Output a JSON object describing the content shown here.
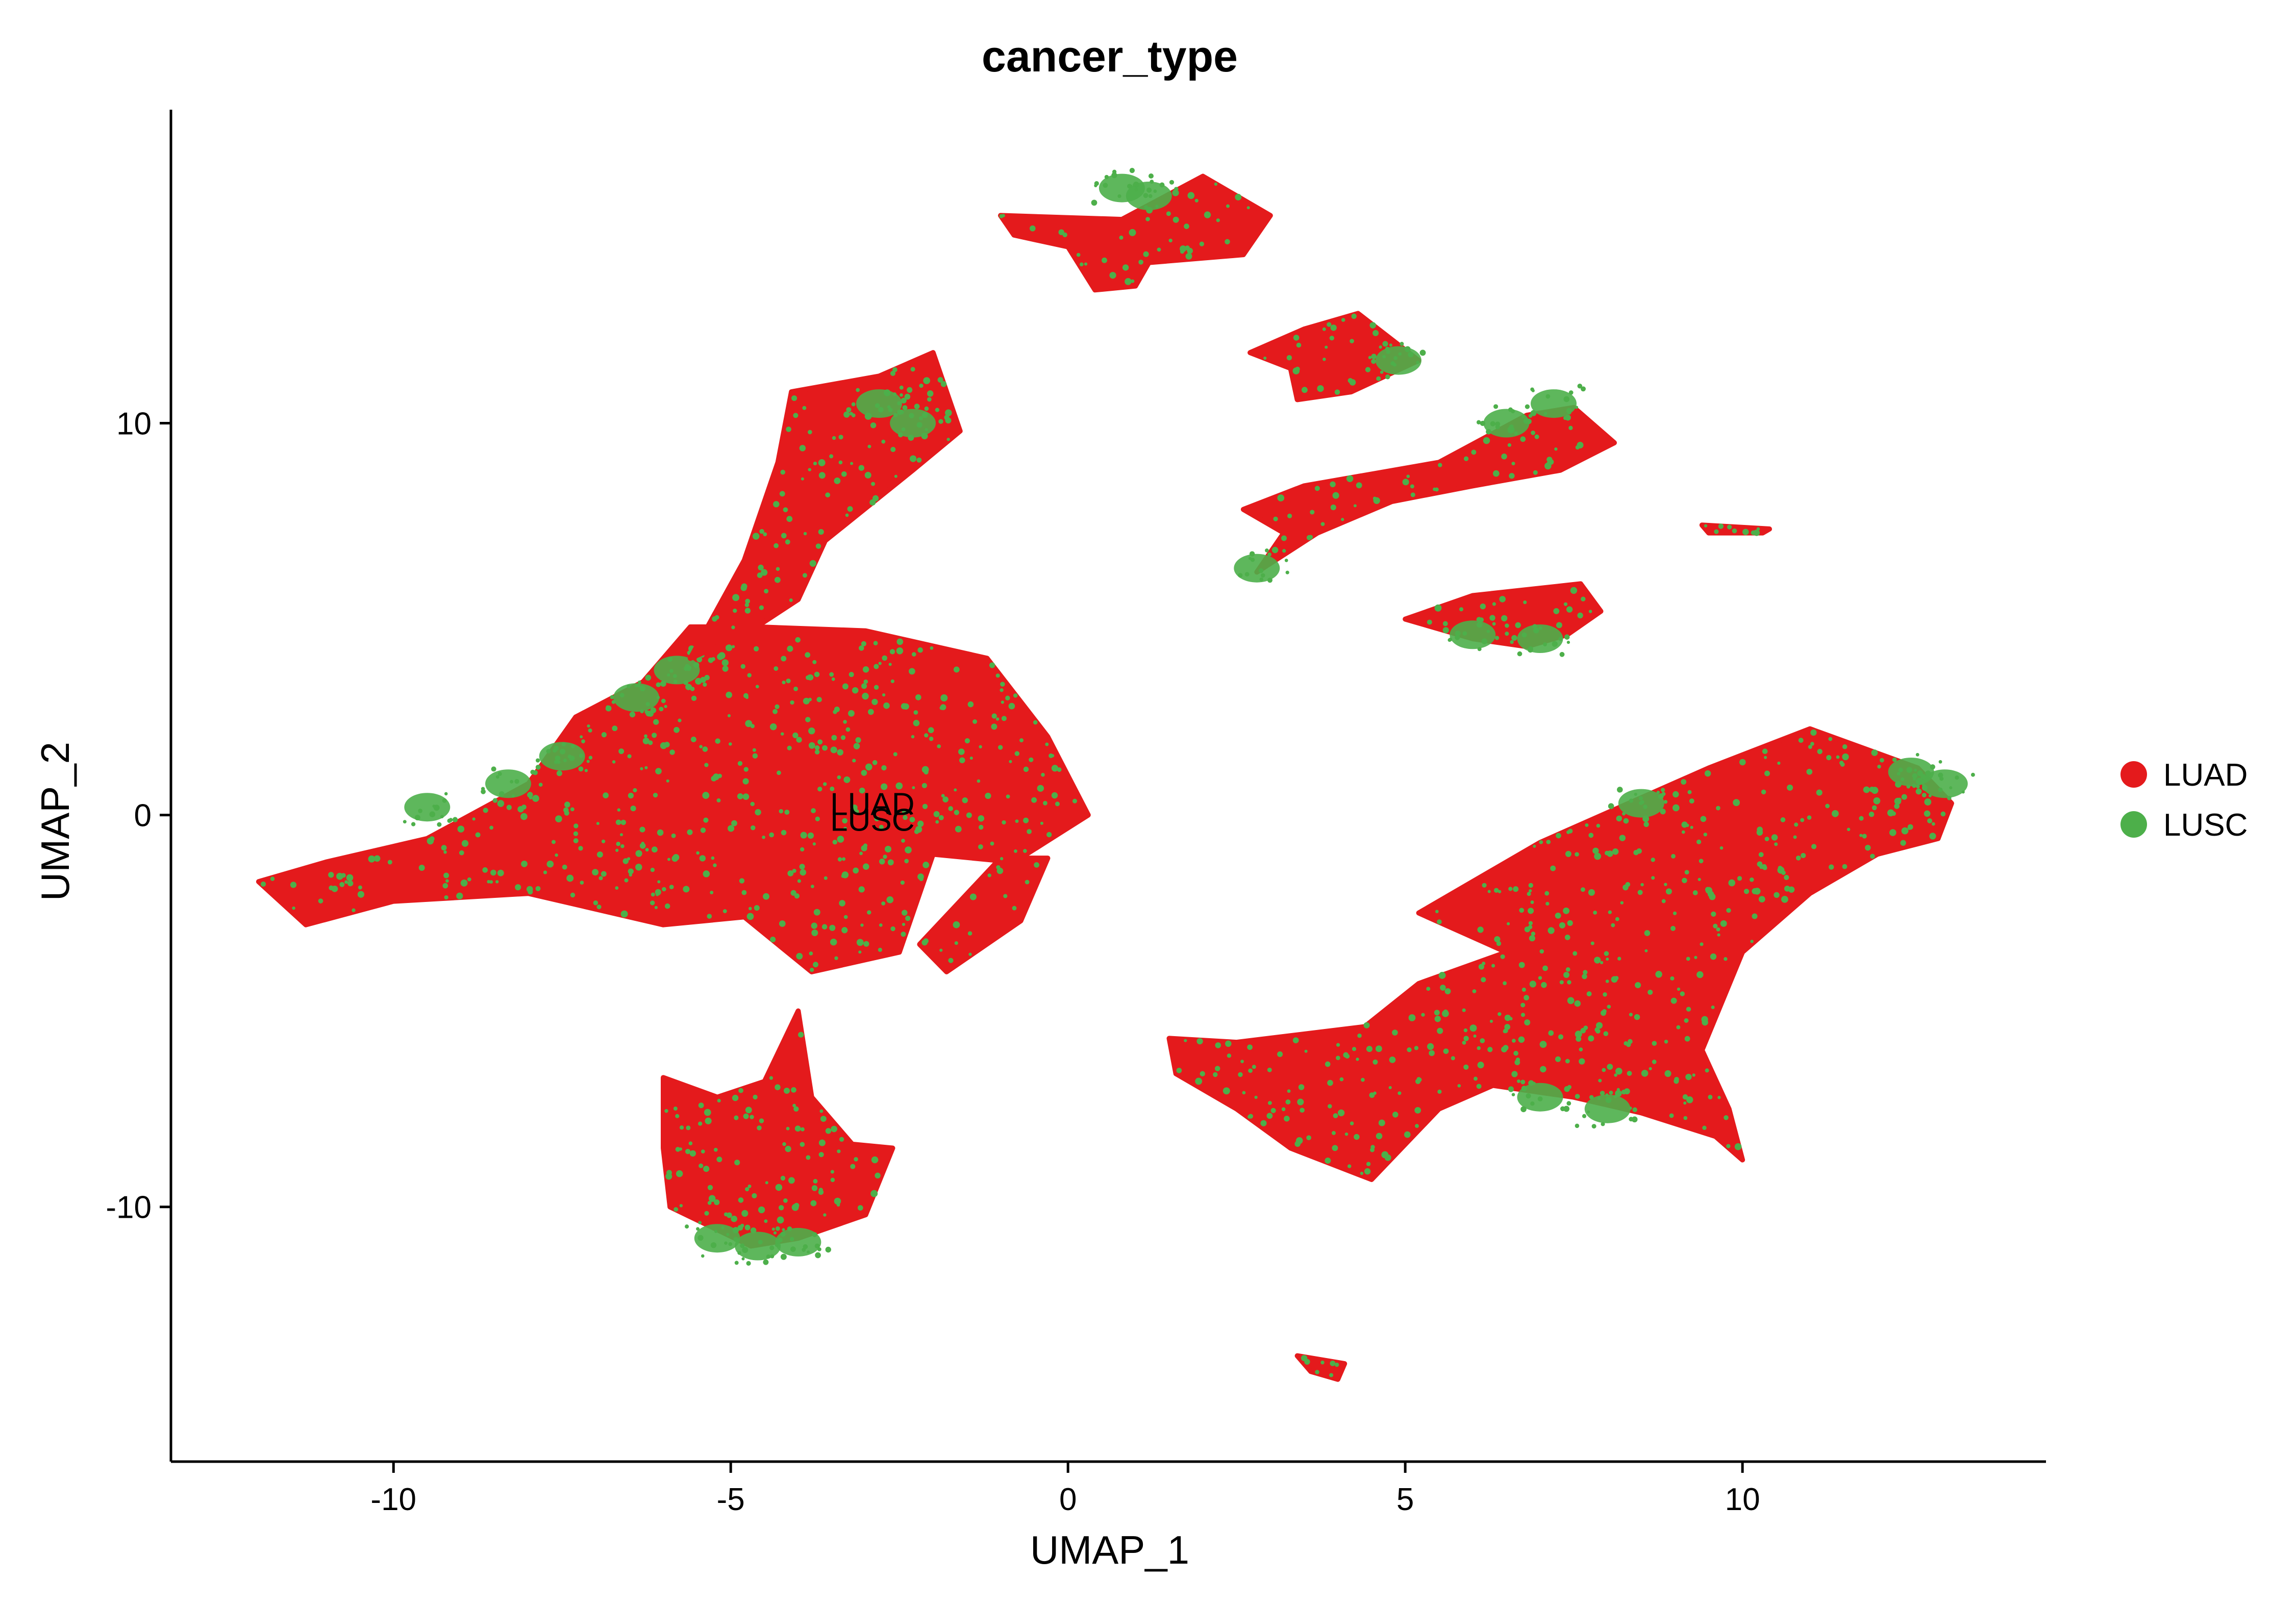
{
  "chart_data": {
    "type": "scatter",
    "title": "cancer_type",
    "xlabel": "UMAP_1",
    "ylabel": "UMAP_2",
    "xlim": [
      -13.3,
      14.5
    ],
    "ylim": [
      -16.5,
      18
    ],
    "xticks": [
      -10,
      -5,
      0,
      5,
      10
    ],
    "yticks": [
      -10,
      0,
      10
    ],
    "xtick_labels": [
      "-10",
      "-5",
      "0",
      "5",
      "10"
    ],
    "ytick_labels": [
      "-10",
      "0",
      "10"
    ],
    "grid": false,
    "legend_position": "right",
    "series": [
      {
        "name": "LUAD",
        "color": "#e41a1c"
      },
      {
        "name": "LUSC",
        "color": "#4daf4a"
      }
    ],
    "annotations": [
      {
        "text": "LUAD",
        "x": -2.9,
        "y": 0
      },
      {
        "text": "LUSC",
        "x": -2.9,
        "y": -0.4
      }
    ],
    "clusters": [
      {
        "points": [
          [
            -12.0,
            -1.7
          ],
          [
            -11.0,
            -1.2
          ],
          [
            -9.5,
            -0.6
          ],
          [
            -8.0,
            0.8
          ],
          [
            -7.3,
            2.5
          ],
          [
            -6.3,
            3.4
          ],
          [
            -5.6,
            4.8
          ],
          [
            -4.6,
            4.8
          ],
          [
            -3.0,
            4.7
          ],
          [
            -1.2,
            4.0
          ],
          [
            -0.3,
            2.0
          ],
          [
            0.3,
            0.0
          ],
          [
            -0.8,
            -1.2
          ],
          [
            -2.0,
            -1.0
          ],
          [
            -2.5,
            -3.5
          ],
          [
            -3.8,
            -4.0
          ],
          [
            -4.8,
            -2.6
          ],
          [
            -6.0,
            -2.8
          ],
          [
            -8.0,
            -2.0
          ],
          [
            -10.0,
            -2.2
          ],
          [
            -11.3,
            -2.8
          ]
        ],
        "lusc_edge": [
          [
            -9.5,
            0.2
          ],
          [
            -8.3,
            0.8
          ],
          [
            -7.5,
            1.5
          ],
          [
            -6.4,
            3.0
          ],
          [
            -5.8,
            3.7
          ]
        ]
      },
      {
        "points": [
          [
            -5.6,
            4.0
          ],
          [
            -4.8,
            6.5
          ],
          [
            -4.3,
            9.0
          ],
          [
            -4.1,
            10.8
          ],
          [
            -2.8,
            11.2
          ],
          [
            -2.0,
            11.8
          ],
          [
            -1.6,
            9.8
          ],
          [
            -2.3,
            8.8
          ],
          [
            -3.6,
            7.0
          ],
          [
            -4.0,
            5.5
          ],
          [
            -4.8,
            4.6
          ]
        ],
        "lusc_edge": [
          [
            -2.8,
            10.5
          ],
          [
            -2.3,
            10.0
          ]
        ]
      },
      {
        "points": [
          [
            -6.0,
            -6.7
          ],
          [
            -5.2,
            -7.2
          ],
          [
            -4.5,
            -6.8
          ],
          [
            -4.0,
            -5.0
          ],
          [
            -3.8,
            -7.2
          ],
          [
            -3.2,
            -8.4
          ],
          [
            -2.6,
            -8.5
          ],
          [
            -3.0,
            -10.2
          ],
          [
            -4.0,
            -10.8
          ],
          [
            -4.7,
            -11.0
          ],
          [
            -5.9,
            -10.0
          ],
          [
            -6.0,
            -8.5
          ]
        ],
        "lusc_edge": [
          [
            -5.2,
            -10.8
          ],
          [
            -4.6,
            -11.0
          ],
          [
            -4.0,
            -10.9
          ]
        ]
      },
      {
        "points": [
          [
            -1.0,
            15.3
          ],
          [
            0.8,
            15.2
          ],
          [
            2.0,
            16.3
          ],
          [
            3.0,
            15.3
          ],
          [
            2.6,
            14.3
          ],
          [
            1.2,
            14.1
          ],
          [
            1.0,
            13.5
          ],
          [
            0.4,
            13.4
          ],
          [
            0.0,
            14.5
          ],
          [
            -0.8,
            14.8
          ]
        ],
        "lusc_edge": [
          [
            0.8,
            16.0
          ],
          [
            1.2,
            15.8
          ]
        ]
      },
      {
        "points": [
          [
            2.7,
            11.8
          ],
          [
            3.5,
            12.4
          ],
          [
            4.3,
            12.8
          ],
          [
            5.2,
            11.6
          ],
          [
            4.2,
            10.8
          ],
          [
            3.4,
            10.6
          ],
          [
            3.3,
            11.4
          ]
        ],
        "lusc_edge": [
          [
            4.9,
            11.6
          ]
        ]
      },
      {
        "points": [
          [
            2.6,
            7.8
          ],
          [
            3.5,
            8.4
          ],
          [
            5.5,
            9.0
          ],
          [
            6.8,
            10.2
          ],
          [
            7.5,
            10.4
          ],
          [
            8.1,
            9.5
          ],
          [
            7.3,
            8.8
          ],
          [
            6.0,
            8.4
          ],
          [
            4.8,
            8.0
          ],
          [
            3.7,
            7.2
          ],
          [
            2.8,
            6.2
          ],
          [
            3.2,
            7.2
          ]
        ],
        "lusc_edge": [
          [
            2.8,
            6.3
          ],
          [
            6.5,
            10.0
          ],
          [
            7.2,
            10.5
          ]
        ]
      },
      {
        "points": [
          [
            5.0,
            5.0
          ],
          [
            6.0,
            5.6
          ],
          [
            7.6,
            5.9
          ],
          [
            7.9,
            5.2
          ],
          [
            7.4,
            4.6
          ],
          [
            6.8,
            4.3
          ],
          [
            6.0,
            4.5
          ]
        ],
        "lusc_edge": [
          [
            6.0,
            4.6
          ],
          [
            7.0,
            4.5
          ]
        ]
      },
      {
        "points": [
          [
            -1.0,
            -1.1
          ],
          [
            -0.3,
            -1.1
          ],
          [
            -0.7,
            -2.7
          ],
          [
            -1.8,
            -4.0
          ],
          [
            -2.2,
            -3.3
          ]
        ],
        "lusc_edge": []
      },
      {
        "points": [
          [
            1.5,
            -5.7
          ],
          [
            2.5,
            -5.8
          ],
          [
            4.4,
            -5.4
          ],
          [
            5.2,
            -4.3
          ],
          [
            6.5,
            -3.5
          ],
          [
            5.2,
            -2.5
          ],
          [
            7.0,
            -0.7
          ],
          [
            9.5,
            1.2
          ],
          [
            11.0,
            2.2
          ],
          [
            12.6,
            1.2
          ],
          [
            13.1,
            0.3
          ],
          [
            12.9,
            -0.6
          ],
          [
            12.0,
            -1.0
          ],
          [
            11.0,
            -2.0
          ],
          [
            10.0,
            -3.5
          ],
          [
            9.4,
            -6.0
          ],
          [
            9.8,
            -7.5
          ],
          [
            10.0,
            -8.8
          ],
          [
            9.6,
            -8.2
          ],
          [
            8.5,
            -7.6
          ],
          [
            7.5,
            -7.2
          ],
          [
            6.3,
            -6.9
          ],
          [
            5.5,
            -7.5
          ],
          [
            4.5,
            -9.3
          ],
          [
            3.3,
            -8.5
          ],
          [
            2.5,
            -7.5
          ],
          [
            1.6,
            -6.6
          ]
        ],
        "lusc_edge": [
          [
            12.5,
            1.1
          ],
          [
            13.0,
            0.8
          ],
          [
            8.5,
            0.3
          ],
          [
            7.0,
            -7.2
          ],
          [
            8.0,
            -7.5
          ]
        ]
      },
      {
        "points": [
          [
            3.4,
            -13.8
          ],
          [
            4.1,
            -14.0
          ],
          [
            4.0,
            -14.4
          ],
          [
            3.6,
            -14.2
          ]
        ],
        "lusc_edge": []
      },
      {
        "points": [
          [
            9.4,
            7.4
          ],
          [
            10.4,
            7.3
          ],
          [
            10.3,
            7.2
          ],
          [
            9.5,
            7.2
          ]
        ],
        "lusc_edge": []
      }
    ]
  }
}
